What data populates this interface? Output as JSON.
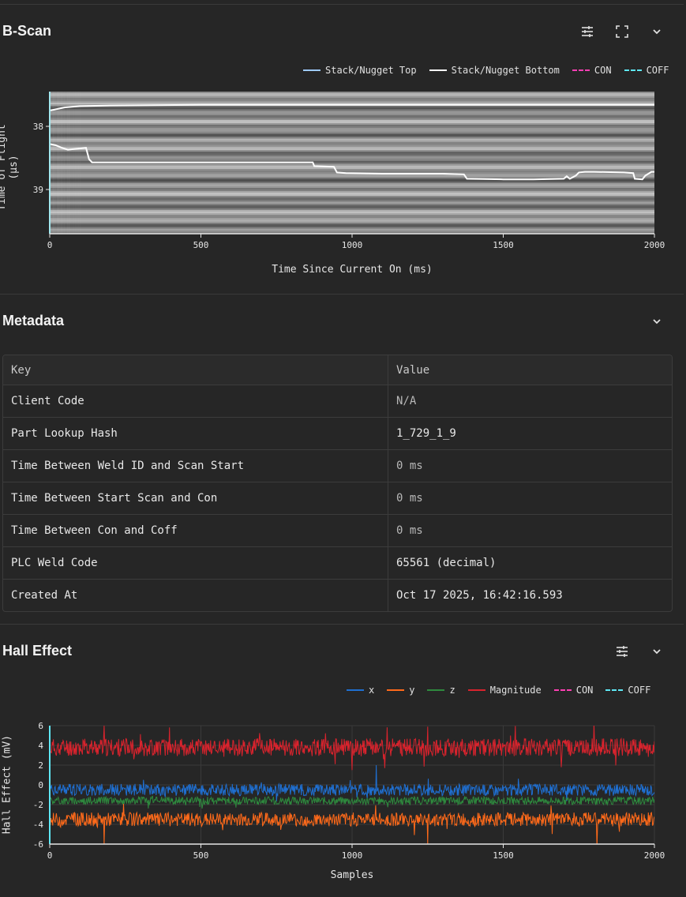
{
  "bscan": {
    "title": "B-Scan",
    "icons": {
      "settings": "sliders-icon",
      "fullscreen": "fullscreen-icon",
      "collapse": "chevron-down-icon"
    },
    "legend": [
      {
        "label": "Stack/Nugget Top",
        "color": "#9ecbff",
        "dashed": false
      },
      {
        "label": "Stack/Nugget Bottom",
        "color": "#ffffff",
        "dashed": false
      },
      {
        "label": "CON",
        "color": "#ff3fb4",
        "dashed": true
      },
      {
        "label": "COFF",
        "color": "#5fe8f5",
        "dashed": true
      }
    ],
    "chart_data": {
      "type": "line",
      "title": "",
      "xlabel": "Time Since Current On (ms)",
      "ylabel": "Time of Flight (µs)",
      "xlim": [
        0,
        2000
      ],
      "ylim": [
        39.7,
        37.45
      ],
      "x_ticks": [
        "0",
        "500",
        "1000",
        "1500",
        "2000"
      ],
      "y_ticks": [
        "38",
        "39"
      ],
      "background": "grayscale B-scan image with horizontal banding",
      "series": [
        {
          "name": "Stack/Nugget Top",
          "color": "#ffffff",
          "x": [
            0,
            50,
            100,
            200,
            500,
            1000,
            1500,
            2000
          ],
          "y": [
            37.75,
            37.7,
            37.68,
            37.67,
            37.66,
            37.66,
            37.66,
            37.66
          ]
        },
        {
          "name": "Stack/Nugget Bottom",
          "color": "#ffffff",
          "x": [
            0,
            20,
            40,
            60,
            80,
            100,
            120,
            130,
            140,
            300,
            600,
            870,
            875,
            940,
            950,
            980,
            1100,
            1300,
            1370,
            1380,
            1500,
            1600,
            1700,
            1710,
            1720,
            1740,
            1750,
            1770,
            1800,
            1900,
            1930,
            1935,
            1960,
            1970,
            1990,
            2000
          ],
          "y": [
            38.28,
            38.3,
            38.34,
            38.37,
            38.36,
            38.35,
            38.34,
            38.52,
            38.57,
            38.57,
            38.57,
            38.57,
            38.63,
            38.64,
            38.73,
            38.74,
            38.75,
            38.75,
            38.76,
            38.83,
            38.84,
            38.84,
            38.83,
            38.79,
            38.83,
            38.78,
            38.73,
            38.72,
            38.72,
            38.73,
            38.74,
            38.83,
            38.84,
            38.78,
            38.72,
            38.72
          ]
        }
      ],
      "markers": [
        {
          "name": "CON",
          "x": 0,
          "color": "#ff3fb4"
        },
        {
          "name": "COFF",
          "x": 0,
          "color": "#5fe8f5"
        }
      ]
    }
  },
  "metadata": {
    "title": "Metadata",
    "icons": {
      "collapse": "chevron-down-icon"
    },
    "header": {
      "key": "Key",
      "value": "Value"
    },
    "rows": [
      {
        "key": "Client Code",
        "value": "N/A"
      },
      {
        "key": "Part Lookup Hash",
        "value": "1_729_1_9"
      },
      {
        "key": "Time Between Weld ID and Scan Start",
        "value": "0 ms"
      },
      {
        "key": "Time Between Start Scan and Con",
        "value": "0 ms"
      },
      {
        "key": "Time Between Con and Coff",
        "value": "0 ms"
      },
      {
        "key": "PLC Weld Code",
        "value": "65561 (decimal)"
      },
      {
        "key": "Created At",
        "value": "Oct 17 2025, 16:42:16.593"
      }
    ]
  },
  "hall": {
    "title": "Hall Effect",
    "icons": {
      "settings": "sliders-icon",
      "collapse": "chevron-down-icon"
    },
    "legend": [
      {
        "label": "x",
        "color": "#1f6fd1",
        "dashed": false
      },
      {
        "label": "y",
        "color": "#ff6a1a",
        "dashed": false
      },
      {
        "label": "z",
        "color": "#2e8a3e",
        "dashed": false
      },
      {
        "label": "Magnitude",
        "color": "#d9232d",
        "dashed": false
      },
      {
        "label": "CON",
        "color": "#ff3fb4",
        "dashed": true
      },
      {
        "label": "COFF",
        "color": "#5fe8f5",
        "dashed": true
      }
    ],
    "chart_data": {
      "type": "line",
      "title": "",
      "xlabel": "Samples",
      "ylabel": "Hall Effect (mV)",
      "xlim": [
        0,
        2000
      ],
      "ylim": [
        -6,
        6
      ],
      "x_ticks": [
        "0",
        "500",
        "1000",
        "1500",
        "2000"
      ],
      "y_ticks": [
        "6",
        "4",
        "2",
        "0",
        "-2",
        "-4",
        "-6"
      ],
      "grid": true,
      "series": [
        {
          "name": "Magnitude",
          "color": "#d9232d",
          "mean": 3.8,
          "noise": 0.9,
          "peaks": [
            [
              180,
              6
            ],
            [
              1250,
              5.9
            ],
            [
              1800,
              6.2
            ],
            [
              1000,
              1.5
            ]
          ]
        },
        {
          "name": "x",
          "color": "#1f6fd1",
          "mean": -0.5,
          "noise": 0.6,
          "peaks": [
            [
              1080,
              2.0
            ]
          ]
        },
        {
          "name": "z",
          "color": "#2e8a3e",
          "mean": -1.6,
          "noise": 0.4,
          "peaks": []
        },
        {
          "name": "y",
          "color": "#ff6a1a",
          "mean": -3.5,
          "noise": 0.7,
          "peaks": [
            [
              180,
              -6
            ],
            [
              1250,
              -6
            ],
            [
              1810,
              -6.2
            ]
          ]
        }
      ],
      "markers": [
        {
          "name": "CON",
          "x": 0,
          "color": "#ff3fb4"
        },
        {
          "name": "COFF",
          "x": 0,
          "color": "#5fe8f5"
        }
      ]
    }
  }
}
